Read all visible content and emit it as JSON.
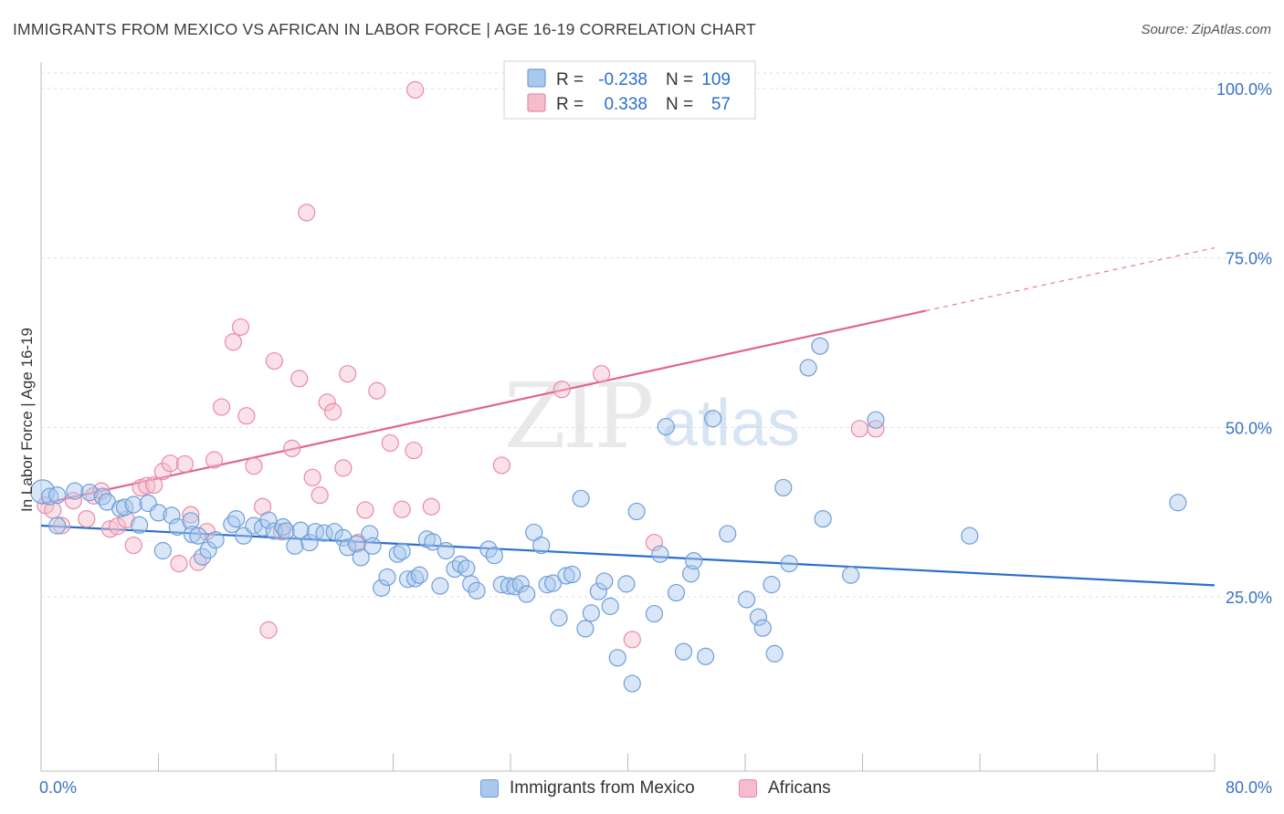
{
  "header": {
    "title": "IMMIGRANTS FROM MEXICO VS AFRICAN IN LABOR FORCE | AGE 16-19 CORRELATION CHART",
    "source": "Source: ZipAtlas.com"
  },
  "watermark": {
    "zip": "ZIP",
    "atlas": "atlas"
  },
  "colors": {
    "blue_fill": "#a9c8ee",
    "blue_stroke": "#6f9fd8",
    "blue_line": "#2a6fcc",
    "pink_fill": "#f5bccd",
    "pink_stroke": "#e98aa8",
    "pink_line": "#e0658d",
    "axis_text": "#3a73c4",
    "grid": "#dddddd"
  },
  "stats_legend": [
    {
      "r_label": "R =",
      "r_value": "-0.238",
      "n_label": "N =",
      "n_value": "109"
    },
    {
      "r_label": "R =",
      "r_value": " 0.338",
      "n_label": "N =",
      "n_value": " 57"
    }
  ],
  "chart_data": {
    "type": "scatter",
    "title": "IMMIGRANTS FROM MEXICO VS AFRICAN IN LABOR FORCE | AGE 16-19 CORRELATION CHART",
    "xlabel": "",
    "ylabel": "In Labor Force | Age 16-19",
    "xlim": [
      0,
      80
    ],
    "ylim": [
      3,
      105
    ],
    "x_tick_labels": [
      "0.0%",
      "80.0%"
    ],
    "y_ticks": [
      25,
      50,
      75,
      100
    ],
    "y_tick_labels": [
      "25.0%",
      "50.0%",
      "75.0%",
      "100.0%"
    ],
    "grid": true,
    "legend_position": "bottom",
    "series": [
      {
        "name": "Immigrants from Mexico",
        "color": "#a9c8ee",
        "r": -0.238,
        "n": 109,
        "trend": {
          "x": [
            0,
            80
          ],
          "y": [
            35.5,
            26.7
          ]
        },
        "points": [
          [
            0.1,
            40.5
          ],
          [
            0.6,
            39.8
          ],
          [
            1.1,
            35.5
          ],
          [
            1.1,
            40.0
          ],
          [
            2.3,
            40.6
          ],
          [
            3.3,
            40.4
          ],
          [
            4.2,
            39.8
          ],
          [
            4.5,
            39.0
          ],
          [
            5.4,
            38.0
          ],
          [
            5.7,
            38.2
          ],
          [
            6.3,
            38.6
          ],
          [
            6.7,
            35.6
          ],
          [
            7.3,
            38.8
          ],
          [
            8.0,
            37.4
          ],
          [
            8.3,
            31.8
          ],
          [
            8.9,
            37.0
          ],
          [
            9.3,
            35.3
          ],
          [
            10.2,
            36.2
          ],
          [
            10.3,
            34.2
          ],
          [
            10.7,
            34.0
          ],
          [
            11.0,
            30.9
          ],
          [
            11.4,
            31.9
          ],
          [
            11.9,
            33.4
          ],
          [
            13.0,
            35.7
          ],
          [
            13.3,
            36.5
          ],
          [
            13.8,
            34.0
          ],
          [
            14.5,
            35.5
          ],
          [
            15.1,
            35.2
          ],
          [
            15.5,
            36.3
          ],
          [
            15.9,
            34.7
          ],
          [
            16.5,
            35.3
          ],
          [
            16.7,
            34.7
          ],
          [
            17.3,
            32.5
          ],
          [
            17.7,
            34.8
          ],
          [
            18.3,
            33.0
          ],
          [
            18.7,
            34.6
          ],
          [
            19.3,
            34.4
          ],
          [
            20.0,
            34.6
          ],
          [
            20.6,
            33.7
          ],
          [
            20.9,
            32.3
          ],
          [
            21.5,
            32.8
          ],
          [
            21.8,
            30.8
          ],
          [
            22.4,
            34.3
          ],
          [
            22.6,
            32.5
          ],
          [
            23.2,
            26.3
          ],
          [
            23.6,
            27.9
          ],
          [
            24.3,
            31.3
          ],
          [
            24.6,
            31.7
          ],
          [
            25.0,
            27.6
          ],
          [
            25.5,
            27.7
          ],
          [
            25.8,
            28.2
          ],
          [
            26.3,
            33.5
          ],
          [
            26.7,
            33.1
          ],
          [
            27.2,
            26.6
          ],
          [
            27.6,
            31.8
          ],
          [
            28.2,
            29.1
          ],
          [
            28.6,
            29.8
          ],
          [
            29.0,
            29.2
          ],
          [
            29.3,
            26.9
          ],
          [
            29.7,
            25.9
          ],
          [
            30.5,
            32.0
          ],
          [
            30.9,
            31.1
          ],
          [
            31.4,
            26.8
          ],
          [
            31.9,
            26.6
          ],
          [
            32.3,
            26.5
          ],
          [
            32.7,
            26.9
          ],
          [
            33.1,
            25.4
          ],
          [
            33.6,
            34.5
          ],
          [
            34.1,
            32.6
          ],
          [
            34.5,
            26.8
          ],
          [
            34.9,
            27.0
          ],
          [
            35.3,
            21.9
          ],
          [
            35.8,
            28.1
          ],
          [
            36.2,
            28.3
          ],
          [
            36.8,
            39.5
          ],
          [
            37.1,
            20.3
          ],
          [
            37.5,
            22.6
          ],
          [
            38.0,
            25.8
          ],
          [
            38.4,
            27.3
          ],
          [
            38.8,
            23.6
          ],
          [
            39.3,
            16.0
          ],
          [
            39.9,
            26.9
          ],
          [
            40.3,
            12.2
          ],
          [
            40.6,
            37.6
          ],
          [
            41.8,
            22.5
          ],
          [
            42.2,
            31.3
          ],
          [
            42.6,
            50.1
          ],
          [
            43.3,
            25.6
          ],
          [
            43.8,
            16.9
          ],
          [
            44.3,
            28.4
          ],
          [
            44.5,
            30.3
          ],
          [
            45.3,
            16.2
          ],
          [
            45.8,
            51.3
          ],
          [
            46.8,
            34.3
          ],
          [
            48.1,
            24.6
          ],
          [
            48.9,
            22.0
          ],
          [
            49.2,
            20.4
          ],
          [
            49.8,
            26.8
          ],
          [
            50.0,
            16.6
          ],
          [
            50.6,
            41.1
          ],
          [
            51.0,
            29.9
          ],
          [
            52.3,
            58.8
          ],
          [
            53.1,
            62.0
          ],
          [
            53.3,
            36.5
          ],
          [
            55.2,
            28.2
          ],
          [
            56.9,
            51.1
          ],
          [
            63.3,
            34.0
          ],
          [
            77.5,
            38.9
          ]
        ]
      },
      {
        "name": "Africans",
        "color": "#f5bccd",
        "r": 0.338,
        "n": 57,
        "trend": {
          "x": [
            0,
            60.3
          ],
          "y": [
            38.7,
            67.2
          ],
          "dashed_to": {
            "x": 80,
            "y": 76.5
          }
        },
        "points": [
          [
            0.3,
            38.5
          ],
          [
            0.8,
            37.8
          ],
          [
            1.4,
            35.5
          ],
          [
            2.2,
            39.2
          ],
          [
            3.1,
            36.5
          ],
          [
            3.6,
            39.9
          ],
          [
            4.1,
            40.6
          ],
          [
            4.7,
            35.0
          ],
          [
            5.2,
            35.4
          ],
          [
            5.8,
            36.4
          ],
          [
            6.3,
            32.6
          ],
          [
            6.8,
            41.1
          ],
          [
            7.2,
            41.4
          ],
          [
            7.7,
            41.5
          ],
          [
            8.3,
            43.5
          ],
          [
            8.8,
            44.7
          ],
          [
            9.4,
            29.9
          ],
          [
            9.8,
            44.6
          ],
          [
            10.2,
            37.1
          ],
          [
            10.7,
            30.1
          ],
          [
            11.3,
            34.6
          ],
          [
            11.8,
            45.2
          ],
          [
            12.3,
            53.0
          ],
          [
            13.1,
            62.6
          ],
          [
            13.6,
            64.8
          ],
          [
            14.0,
            51.7
          ],
          [
            14.5,
            44.3
          ],
          [
            15.1,
            38.3
          ],
          [
            15.5,
            20.1
          ],
          [
            15.9,
            59.8
          ],
          [
            16.4,
            34.6
          ],
          [
            17.1,
            46.9
          ],
          [
            17.6,
            57.2
          ],
          [
            18.1,
            81.7
          ],
          [
            18.5,
            42.6
          ],
          [
            19.0,
            40.0
          ],
          [
            19.5,
            53.7
          ],
          [
            19.9,
            52.3
          ],
          [
            20.6,
            44.0
          ],
          [
            20.9,
            57.9
          ],
          [
            21.6,
            33.0
          ],
          [
            22.1,
            37.8
          ],
          [
            22.9,
            55.4
          ],
          [
            23.8,
            47.7
          ],
          [
            24.6,
            37.9
          ],
          [
            25.4,
            46.6
          ],
          [
            25.5,
            99.8
          ],
          [
            26.6,
            38.3
          ],
          [
            31.4,
            44.4
          ],
          [
            32.4,
            99.9
          ],
          [
            32.8,
            99.9
          ],
          [
            35.5,
            55.6
          ],
          [
            38.2,
            57.9
          ],
          [
            40.3,
            18.7
          ],
          [
            41.8,
            33.0
          ],
          [
            55.8,
            49.8
          ],
          [
            56.9,
            49.8
          ]
        ]
      }
    ]
  }
}
